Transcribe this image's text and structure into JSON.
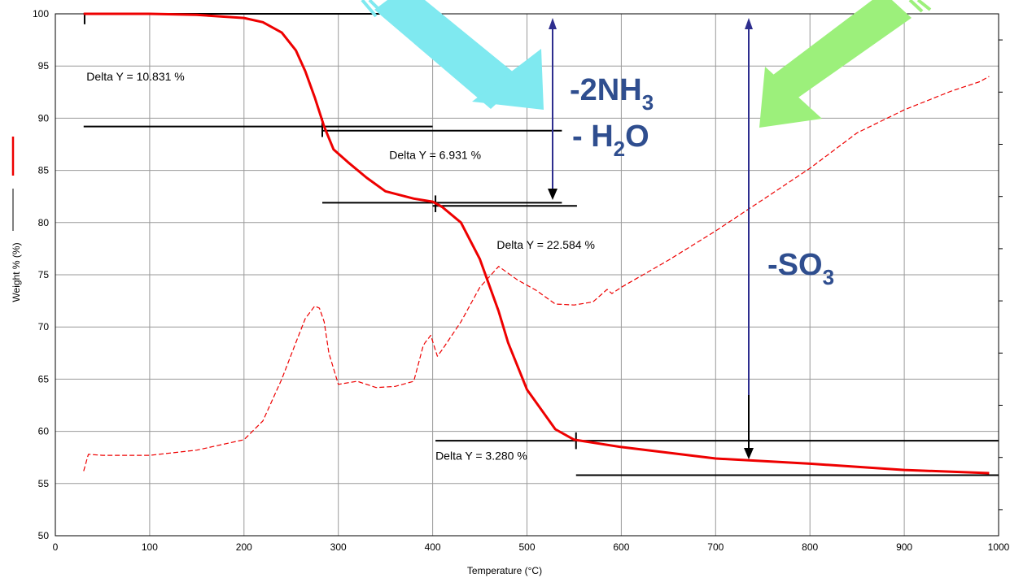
{
  "chart_data": {
    "type": "line",
    "xlabel": "Temperature (°C)",
    "ylabel": "Weight % (%)",
    "xlim": [
      0,
      1000
    ],
    "ylim": [
      50,
      100
    ],
    "x_ticks": [
      "0",
      "100",
      "200",
      "300",
      "400",
      "500",
      "600",
      "700",
      "800",
      "900",
      "1000"
    ],
    "y_ticks": [
      "50",
      "55",
      "60",
      "65",
      "70",
      "75",
      "80",
      "85",
      "90",
      "95",
      "100"
    ],
    "grid": true,
    "series": [
      {
        "style": "solid",
        "color": "#ee0000",
        "x": [
          30,
          100,
          150,
          200,
          220,
          240,
          255,
          265,
          275,
          285,
          295,
          310,
          330,
          350,
          380,
          400,
          410,
          430,
          450,
          460,
          470,
          480,
          500,
          530,
          550,
          600,
          700,
          800,
          900,
          990
        ],
        "y": [
          100,
          100,
          99.9,
          99.6,
          99.2,
          98.2,
          96.5,
          94.5,
          92,
          89.2,
          87,
          85.8,
          84.3,
          83,
          82.3,
          82,
          81.5,
          80,
          76.5,
          74,
          71.5,
          68.5,
          64,
          60.2,
          59.2,
          58.5,
          57.4,
          56.9,
          56.3,
          56
        ]
      },
      {
        "style": "dashed",
        "color": "#ee0000",
        "x": [
          30,
          35,
          50,
          100,
          150,
          200,
          220,
          240,
          255,
          265,
          275,
          280,
          285,
          290,
          300,
          320,
          340,
          360,
          380,
          390,
          392,
          398,
          405,
          410,
          430,
          450,
          470,
          490,
          510,
          530,
          550,
          570,
          585,
          590,
          600,
          650,
          700,
          750,
          800,
          850,
          900,
          950,
          980,
          990
        ],
        "y": [
          56.2,
          57.8,
          57.7,
          57.7,
          58.2,
          59.2,
          61,
          65,
          68.5,
          70.8,
          72,
          71.8,
          70.5,
          67.5,
          64.5,
          64.8,
          64.2,
          64.3,
          64.8,
          68.2,
          68.5,
          69.2,
          67.2,
          67.8,
          70.5,
          73.8,
          75.8,
          74.5,
          73.5,
          72.2,
          72.1,
          72.4,
          73.6,
          73.2,
          73.8,
          76.4,
          79.2,
          82.2,
          85.2,
          88.6,
          90.8,
          92.6,
          93.5,
          94
        ]
      }
    ],
    "step_lines": [
      {
        "x": [
          30,
          397
        ],
        "y": [
          100,
          100
        ]
      },
      {
        "x": [
          30,
          400
        ],
        "y": [
          89.2,
          89.2
        ]
      },
      {
        "x": [
          283,
          537
        ],
        "y": [
          88.8,
          88.8
        ]
      },
      {
        "x": [
          283,
          537
        ],
        "y": [
          81.9,
          81.9
        ]
      },
      {
        "x": [
          400,
          553
        ],
        "y": [
          81.6,
          81.6
        ]
      },
      {
        "x": [
          403,
          1000
        ],
        "y": [
          59.1,
          59.1
        ]
      },
      {
        "x": [
          552,
          1000
        ],
        "y": [
          55.8,
          55.8
        ]
      }
    ],
    "step_markers": [
      {
        "x": 31,
        "y1": 99,
        "y2": 100
      },
      {
        "x": 283,
        "y1": 88.2,
        "y2": 90
      },
      {
        "x": 403,
        "y1": 81,
        "y2": 82.6
      },
      {
        "x": 552,
        "y1": 58.3,
        "y2": 59.9
      }
    ],
    "annotations": [
      {
        "text": "Delta Y = 10.831 %",
        "x": 33,
        "y": 93.6
      },
      {
        "text": "Delta Y = 6.931 %",
        "x": 354,
        "y": 86.1
      },
      {
        "text": "Delta Y = 22.584 %",
        "x": 468,
        "y": 77.5
      },
      {
        "text": "Delta Y = 3.280 %",
        "x": 403,
        "y": 57.3
      }
    ],
    "legend_markers": [
      {
        "color": "#ee0000",
        "style": "solid"
      },
      {
        "color": "#000000",
        "style": "solid"
      }
    ],
    "labels": {
      "nh3_line1": "-2NH",
      "nh3_sub": "3",
      "h2o_prefix": "- H",
      "h2o_sub": "2",
      "h2o_suffix": "O",
      "so3_prefix": "-SO",
      "so3_sub": "3"
    },
    "arrow_colors": {
      "cyan": "#7fe9f0",
      "green": "#9cf07b",
      "navy": "#2d2d8e"
    }
  }
}
